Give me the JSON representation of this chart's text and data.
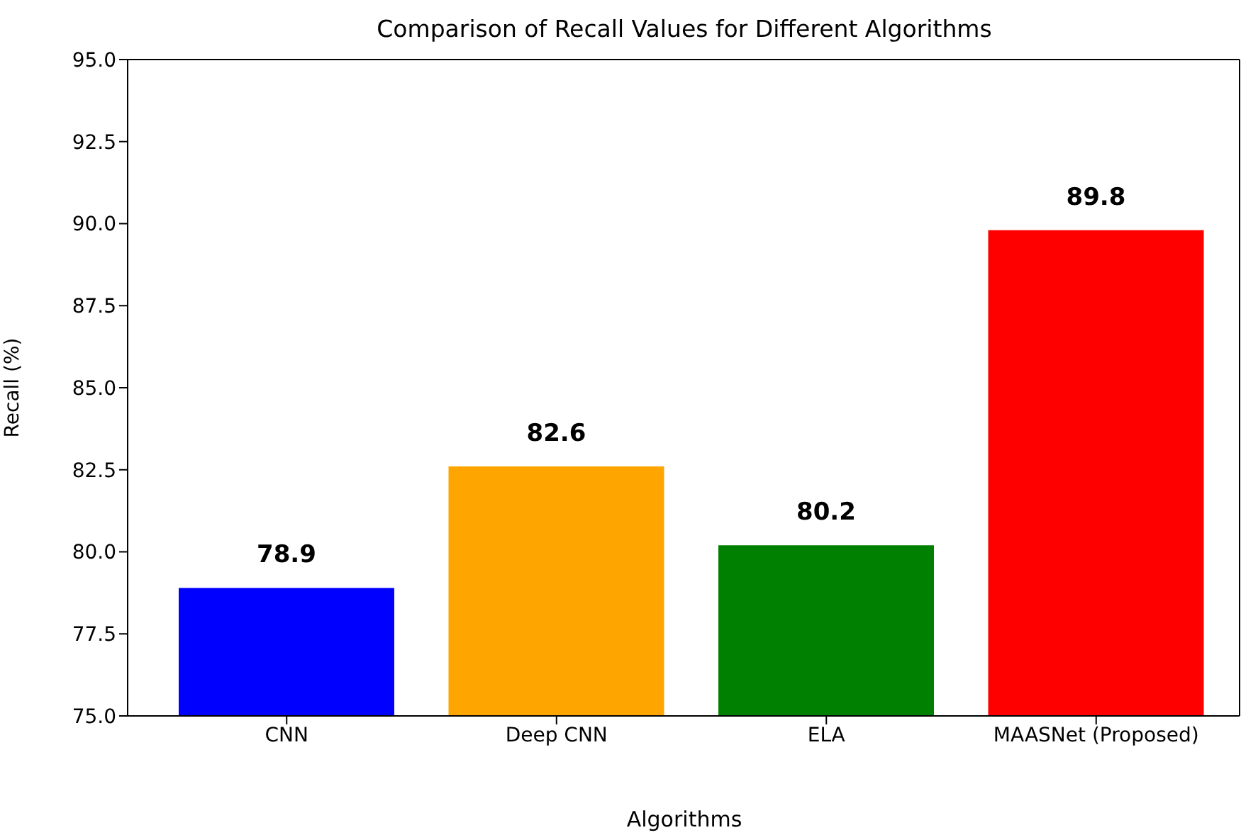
{
  "chart_data": {
    "type": "bar",
    "title": "Comparison of Recall Values for Different Algorithms",
    "xlabel": "Algorithms",
    "ylabel": "Recall (%)",
    "categories": [
      "CNN",
      "Deep CNN",
      "ELA",
      "MAASNet (Proposed)"
    ],
    "values": [
      78.9,
      82.6,
      80.2,
      89.8
    ],
    "colors": [
      "#0000ff",
      "#ffa500",
      "#008000",
      "#ff0000"
    ],
    "ylim": [
      75,
      95
    ],
    "yticks": [
      {
        "value": 75,
        "label": "75.0"
      },
      {
        "value": 77.5,
        "label": "77.5"
      },
      {
        "value": 80,
        "label": "80.0"
      },
      {
        "value": 82.5,
        "label": "82.5"
      },
      {
        "value": 85,
        "label": "85.0"
      },
      {
        "value": 87.5,
        "label": "87.5"
      },
      {
        "value": 90,
        "label": "90.0"
      },
      {
        "value": 92.5,
        "label": "92.5"
      },
      {
        "value": 95,
        "label": "95.0"
      }
    ],
    "data_labels": true,
    "grid": false
  }
}
